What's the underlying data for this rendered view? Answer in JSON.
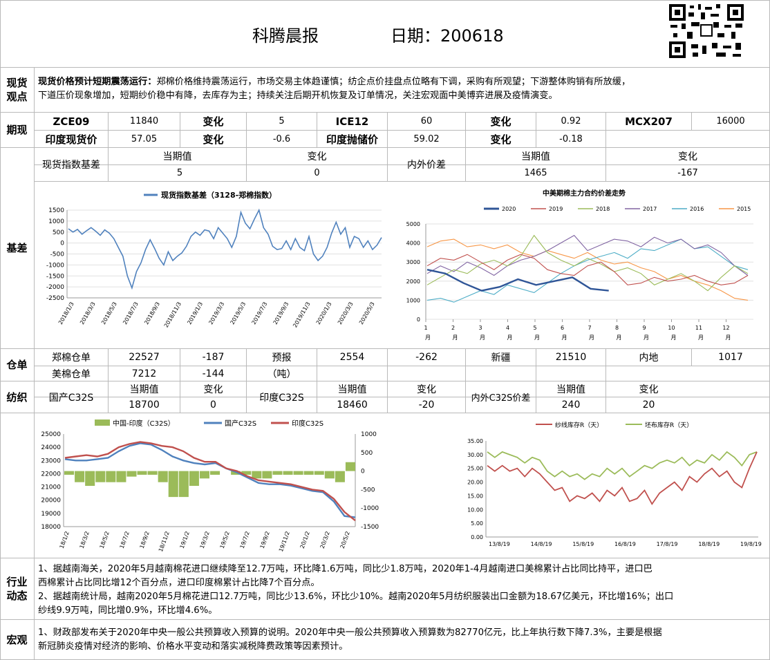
{
  "header": {
    "title": "科腾晨报",
    "date_label": "日期：200618"
  },
  "sections": {
    "spot": "现货观点",
    "futures": "期现",
    "basis": "基差",
    "warehouse": "仓单",
    "yarn": "纺织",
    "industry": "行业动态",
    "macro": "宏观"
  },
  "spot_view": {
    "bold": "现货价格预计短期震荡运行：",
    "line1": "郑棉价格维持震荡运行，市场交易主体趋谨慎；纺企点价挂盘点位略有下调，采购有所观望；下游整体购销有所放缓，",
    "line2": "下道压价现象增加，短期纱价稳中有降，去库存为主；持续关注后期开机恢复及订单情况，关注宏观面中美博弈进展及疫情演变。"
  },
  "futures": {
    "row1": [
      "ZCE09",
      "11840",
      "变化",
      "5",
      "ICE12",
      "60",
      "变化",
      "0.92",
      "MCX207",
      "16000"
    ],
    "row2": [
      "印度现货价",
      "57.05",
      "变化",
      "-0.6",
      "印度抛储价",
      "59.02",
      "变化",
      "-0.18"
    ]
  },
  "basis_table": {
    "label1": "现货指数基差",
    "h_cur": "当期值",
    "h_chg": "变化",
    "v1": "5",
    "c1": "0",
    "label2": "内外价差",
    "h_cur2": "当期值",
    "h_chg2": "变化",
    "v2": "1465",
    "c2": "-167"
  },
  "chart_basis": {
    "legend": "现货指数基差（3128-郑棉指数）",
    "color": "#4f81bd",
    "chart_data": {
      "type": "line",
      "yticks": [
        "1500",
        "1000",
        "500",
        "0",
        "-500",
        "-1000",
        "-1500",
        "-2000",
        "-2500"
      ],
      "ylim": [
        -2500,
        1500
      ],
      "xticks": [
        "2018/1/3",
        "2018/3/3",
        "2018/5/3",
        "2018/7/3",
        "2018/9/3",
        "2018/11/3",
        "2019/1/3",
        "2019/3/3",
        "2019/5/3",
        "2019/7/3",
        "2019/9/3",
        "2019/11/3",
        "2020/1/3",
        "2020/3/3",
        "2020/5/3"
      ],
      "values": [
        650,
        500,
        620,
        400,
        560,
        700,
        540,
        350,
        600,
        450,
        200,
        -200,
        -600,
        -1500,
        -2050,
        -1300,
        -900,
        -300,
        150,
        -250,
        -700,
        -1000,
        -400,
        -800,
        -600,
        -450,
        -150,
        300,
        500,
        350,
        600,
        550,
        200,
        700,
        450,
        200,
        -200,
        300,
        1400,
        900,
        650,
        1100,
        1500,
        700,
        400,
        -150,
        -300,
        -250,
        100,
        -300,
        200,
        -200,
        -350,
        300,
        -500,
        -800,
        -600,
        -200,
        450,
        950,
        400,
        700,
        -200,
        300,
        200,
        -200,
        100,
        -300,
        -100,
        250
      ]
    }
  },
  "chart_spread": {
    "title": "中美期棉主力合约价差走势",
    "chart_data": {
      "type": "line",
      "yticks": [
        "5000",
        "4000",
        "3000",
        "2000",
        "1000",
        "0"
      ],
      "ylim": [
        0,
        5000
      ],
      "xticks": [
        "1",
        "2",
        "3",
        "4",
        "5",
        "6",
        "7",
        "8",
        "9",
        "10",
        "11",
        "12"
      ],
      "xunit": "月",
      "series": [
        {
          "name": "2020",
          "color": "#2f5597",
          "values": [
            2600,
            2400,
            1900,
            1500,
            1700,
            2100,
            1800,
            2000,
            2200,
            1600,
            1500
          ]
        },
        {
          "name": "2019",
          "color": "#c0504d",
          "values": [
            2800,
            3200,
            3100,
            3400,
            3000,
            2600,
            3100,
            3400,
            3200,
            2600,
            2400,
            2300,
            2800,
            3000,
            2500,
            1800,
            1900,
            2200,
            2000,
            2100,
            2300,
            2000,
            1800,
            1900,
            2300
          ]
        },
        {
          "name": "2018",
          "color": "#9bbb59",
          "values": [
            1800,
            2200,
            2600,
            2400,
            2900,
            3100,
            2800,
            3300,
            4400,
            3500,
            3100,
            2800,
            3200,
            2900,
            2500,
            2700,
            2400,
            1800,
            2100,
            2400,
            2000,
            1500,
            2200,
            2800,
            2400
          ]
        },
        {
          "name": "2017",
          "color": "#8064a2",
          "values": [
            2400,
            2800,
            2500,
            3000,
            2700,
            2300,
            2800,
            3100,
            3300,
            3600,
            4000,
            4400,
            3600,
            3900,
            4200,
            4100,
            3800,
            4300,
            4000,
            4200,
            3700,
            3900,
            3500,
            2800,
            2300
          ]
        },
        {
          "name": "2016",
          "color": "#4bacc6",
          "values": [
            1000,
            1100,
            900,
            1200,
            1500,
            1300,
            1800,
            1600,
            1400,
            1900,
            2400,
            2800,
            3100,
            3300,
            3500,
            3200,
            3700,
            3600,
            3900,
            4200,
            3700,
            3800,
            3300,
            2800,
            2600
          ]
        },
        {
          "name": "2015",
          "color": "#f79646",
          "values": [
            3800,
            4100,
            4200,
            3800,
            3900,
            3700,
            3900,
            3500,
            3300,
            3600,
            3400,
            3200,
            3500,
            3100,
            2900,
            3000,
            2700,
            2500,
            2100,
            2300,
            2000,
            1800,
            1500,
            1100,
            1000
          ]
        }
      ]
    }
  },
  "warehouse": {
    "r1": [
      "郑棉仓单",
      "22527",
      "-187",
      "预报",
      "2554",
      "-262",
      "新疆",
      "21510",
      "内地",
      "1017"
    ],
    "r2": [
      "美棉仓单",
      "7212",
      "-144",
      "（吨）"
    ]
  },
  "yarn_table": {
    "label1": "国产C32S",
    "h_cur": "当期值",
    "h_chg": "变化",
    "v1": "18700",
    "c1": "0",
    "label2": "印度C32S",
    "v2": "18460",
    "c2": "-20",
    "label3": "内外C32S价差",
    "v3": "240",
    "c3": "20"
  },
  "chart_yarn": {
    "legend": [
      "中国-印度（C32S）",
      "国产C32S",
      "印度C32S"
    ],
    "colors": [
      "#9bbb59",
      "#4f81bd",
      "#c0504d"
    ],
    "chart_data": {
      "type": "line",
      "yticks_left": [
        "25000",
        "24000",
        "23000",
        "22000",
        "21000",
        "20000",
        "19000",
        "18000"
      ],
      "ylim_left": [
        18000,
        25000
      ],
      "yticks_right": [
        "1000",
        "500",
        "0",
        "-500",
        "-1000",
        "-1500"
      ],
      "ylim_right": [
        -1500,
        1000
      ],
      "xticks": [
        "18/1/2",
        "18/3/2",
        "18/5/2",
        "18/7/2",
        "18/9/2",
        "18/11/2",
        "19/1/2",
        "19/3/2",
        "19/5/2",
        "19/7/2",
        "19/9/2",
        "19/11/2",
        "20/1/2",
        "20/3/2",
        "20/5/2"
      ],
      "series": [
        {
          "name": "国产C32S",
          "values": [
            23100,
            23000,
            23000,
            23100,
            23200,
            23700,
            24100,
            24300,
            24200,
            23800,
            23300,
            23000,
            22800,
            22700,
            22800,
            22400,
            22100,
            21700,
            21300,
            21200,
            21200,
            21100,
            20900,
            20700,
            20600,
            19900,
            18800,
            18700
          ]
        },
        {
          "name": "印度C32S",
          "values": [
            23200,
            23300,
            23400,
            23300,
            23500,
            24000,
            24250,
            24400,
            24300,
            24100,
            24000,
            23700,
            23200,
            22900,
            22900,
            22400,
            22200,
            21800,
            21500,
            21400,
            21300,
            21200,
            21000,
            20800,
            20700,
            20100,
            19100,
            18460
          ]
        },
        {
          "name": "中国-印度（C32S）",
          "values": [
            -100,
            -300,
            -400,
            -300,
            -300,
            -300,
            -150,
            -100,
            -100,
            -300,
            -700,
            -700,
            -400,
            -200,
            -100,
            0,
            -100,
            -100,
            -200,
            -200,
            -100,
            -100,
            -100,
            -100,
            -100,
            -200,
            -300,
            240
          ]
        }
      ]
    }
  },
  "chart_inventory": {
    "legend": [
      "纱线库存R（天）",
      "坯布库存R（天）"
    ],
    "colors": [
      "#c0504d",
      "#9bbb59"
    ],
    "chart_data": {
      "type": "line",
      "yticks": [
        "35.00",
        "30.00",
        "25.00",
        "20.00",
        "15.00",
        "10.00",
        "5.00",
        "0.00"
      ],
      "ylim": [
        0,
        35
      ],
      "xticks": [
        "13/8/19",
        "14/8/19",
        "15/8/19",
        "16/8/19",
        "17/8/19",
        "18/8/19",
        "19/8/19"
      ],
      "series": [
        {
          "name": "纱线库存R（天）",
          "values": [
            26,
            24,
            26,
            24,
            25,
            22,
            25,
            23,
            20,
            17,
            18,
            13,
            15,
            14,
            16,
            13,
            17,
            15,
            18,
            13,
            14,
            17,
            12,
            16,
            18,
            20,
            17,
            22,
            20,
            23,
            25,
            22,
            24,
            20,
            18,
            25,
            31
          ]
        },
        {
          "name": "坯布库存R（天）",
          "values": [
            31,
            29,
            31,
            30,
            29,
            27,
            29,
            28,
            24,
            22,
            24,
            22,
            23,
            21,
            23,
            22,
            25,
            23,
            25,
            22,
            24,
            26,
            25,
            27,
            28,
            27,
            29,
            26,
            28,
            27,
            30,
            28,
            31,
            29,
            26,
            30,
            31
          ]
        }
      ]
    }
  },
  "industry": {
    "l1": "1、据越南海关，2020年5月越南棉花进口继续降至12.7万吨，环比降1.6万吨，同比少1.8万吨，2020年1-4月越南进口美棉累计占比同比持平，进口巴",
    "l2": "西棉累计占比同比增12个百分点，进口印度棉累计占比降7个百分点。",
    "l3": "2、据越南统计局，越南2020年5月棉花进口12.7万吨，同比少13.6%，环比少10%。越南2020年5月纺织服装出口金额为18.67亿美元，环比增16%；出口",
    "l4": "纱线9.9万吨，同比增0.9%，环比增4.6%。"
  },
  "macro": {
    "l1": "1、财政部发布关于2020年中央一般公共预算收入预算的说明。2020年中央一般公共预算收入预算数为82770亿元，比上年执行数下降7.3%，主要是根据",
    "l2": "新冠肺炎疫情对经济的影响、价格水平变动和落实减税降费政策等因素预计。"
  }
}
